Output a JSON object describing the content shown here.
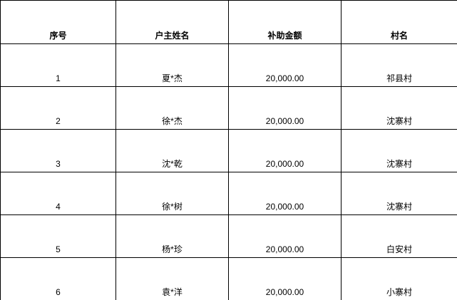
{
  "table": {
    "headers": [
      "序号",
      "户主姓名",
      "补助金额",
      "村名"
    ],
    "rows": [
      [
        "1",
        "夏*杰",
        "20,000.00",
        "祁县村"
      ],
      [
        "2",
        "徐*杰",
        "20,000.00",
        "沈寨村"
      ],
      [
        "3",
        "沈*乾",
        "20,000.00",
        "沈寨村"
      ],
      [
        "4",
        "徐*树",
        "20,000.00",
        "沈寨村"
      ],
      [
        "5",
        "杨*珍",
        "20,000.00",
        "白安村"
      ],
      [
        "6",
        "袁*洋",
        "20,000.00",
        "小寨村"
      ]
    ],
    "colors": {
      "border": "#000000",
      "text": "#000000",
      "background": "#ffffff"
    }
  }
}
